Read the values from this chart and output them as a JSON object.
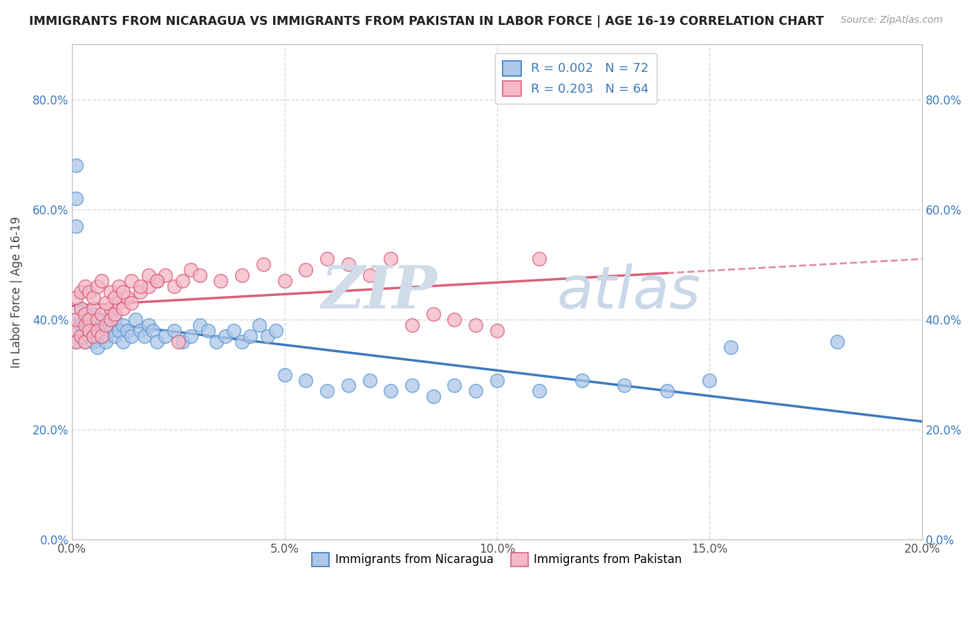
{
  "title": "IMMIGRANTS FROM NICARAGUA VS IMMIGRANTS FROM PAKISTAN IN LABOR FORCE | AGE 16-19 CORRELATION CHART",
  "source": "Source: ZipAtlas.com",
  "ylabel": "In Labor Force | Age 16-19",
  "legend_label1": "Immigrants from Nicaragua",
  "legend_label2": "Immigrants from Pakistan",
  "r1": "0.002",
  "n1": "72",
  "r2": "0.203",
  "n2": "64",
  "color1": "#aec6e8",
  "color2": "#f4b8c8",
  "edge1": "#5b9bd5",
  "edge2": "#d9607a",
  "trendline1_color": "#3a7abf",
  "trendline2_color": "#d9607a",
  "xlim": [
    0.0,
    0.2
  ],
  "ylim": [
    0.0,
    0.9
  ],
  "xticks": [
    0.0,
    0.05,
    0.1,
    0.15,
    0.2
  ],
  "yticks": [
    0.0,
    0.2,
    0.4,
    0.6,
    0.8
  ],
  "xtick_labels": [
    "0.0%",
    "5.0%",
    "10.0%",
    "15.0%",
    "20.0%"
  ],
  "ytick_labels": [
    "0.0%",
    "20.0%",
    "40.0%",
    "60.0%",
    "80.0%"
  ],
  "nicaragua_x": [
    0.001,
    0.001,
    0.001,
    0.002,
    0.002,
    0.002,
    0.003,
    0.003,
    0.003,
    0.004,
    0.004,
    0.005,
    0.005,
    0.005,
    0.006,
    0.006,
    0.006,
    0.007,
    0.007,
    0.008,
    0.008,
    0.008,
    0.009,
    0.009,
    0.01,
    0.01,
    0.011,
    0.012,
    0.012,
    0.013,
    0.014,
    0.015,
    0.016,
    0.017,
    0.018,
    0.019,
    0.02,
    0.022,
    0.024,
    0.026,
    0.028,
    0.03,
    0.032,
    0.034,
    0.036,
    0.038,
    0.04,
    0.042,
    0.044,
    0.046,
    0.048,
    0.05,
    0.055,
    0.06,
    0.065,
    0.07,
    0.075,
    0.08,
    0.085,
    0.09,
    0.095,
    0.1,
    0.11,
    0.12,
    0.13,
    0.14,
    0.15,
    0.001,
    0.001,
    0.001,
    0.155,
    0.18
  ],
  "nicaragua_y": [
    0.38,
    0.4,
    0.36,
    0.37,
    0.42,
    0.39,
    0.38,
    0.36,
    0.41,
    0.37,
    0.4,
    0.38,
    0.36,
    0.41,
    0.37,
    0.39,
    0.35,
    0.38,
    0.4,
    0.37,
    0.39,
    0.36,
    0.38,
    0.41,
    0.37,
    0.4,
    0.38,
    0.39,
    0.36,
    0.38,
    0.37,
    0.4,
    0.38,
    0.37,
    0.39,
    0.38,
    0.36,
    0.37,
    0.38,
    0.36,
    0.37,
    0.39,
    0.38,
    0.36,
    0.37,
    0.38,
    0.36,
    0.37,
    0.39,
    0.37,
    0.38,
    0.3,
    0.29,
    0.27,
    0.28,
    0.29,
    0.27,
    0.28,
    0.26,
    0.28,
    0.27,
    0.29,
    0.27,
    0.29,
    0.28,
    0.27,
    0.29,
    0.62,
    0.68,
    0.57,
    0.35,
    0.36
  ],
  "pakistan_x": [
    0.001,
    0.001,
    0.001,
    0.002,
    0.002,
    0.003,
    0.003,
    0.003,
    0.004,
    0.004,
    0.005,
    0.005,
    0.006,
    0.006,
    0.007,
    0.007,
    0.008,
    0.009,
    0.009,
    0.01,
    0.011,
    0.012,
    0.013,
    0.014,
    0.016,
    0.018,
    0.02,
    0.022,
    0.024,
    0.026,
    0.028,
    0.03,
    0.035,
    0.04,
    0.045,
    0.05,
    0.055,
    0.06,
    0.065,
    0.07,
    0.075,
    0.08,
    0.085,
    0.09,
    0.095,
    0.1,
    0.001,
    0.002,
    0.003,
    0.004,
    0.005,
    0.006,
    0.007,
    0.008,
    0.009,
    0.01,
    0.011,
    0.012,
    0.014,
    0.016,
    0.018,
    0.02,
    0.025,
    0.11
  ],
  "pakistan_y": [
    0.38,
    0.36,
    0.4,
    0.42,
    0.37,
    0.39,
    0.41,
    0.36,
    0.4,
    0.38,
    0.42,
    0.37,
    0.4,
    0.38,
    0.41,
    0.37,
    0.39,
    0.42,
    0.4,
    0.41,
    0.43,
    0.42,
    0.44,
    0.43,
    0.45,
    0.46,
    0.47,
    0.48,
    0.46,
    0.47,
    0.49,
    0.48,
    0.47,
    0.48,
    0.5,
    0.47,
    0.49,
    0.51,
    0.5,
    0.48,
    0.51,
    0.39,
    0.41,
    0.4,
    0.39,
    0.38,
    0.44,
    0.45,
    0.46,
    0.45,
    0.44,
    0.46,
    0.47,
    0.43,
    0.45,
    0.44,
    0.46,
    0.45,
    0.47,
    0.46,
    0.48,
    0.47,
    0.36,
    0.51
  ],
  "watermark_top": "ZIP",
  "watermark_bot": "atlas",
  "background_color": "#ffffff",
  "grid_color": "#d8d8d8",
  "grid_style": "--"
}
